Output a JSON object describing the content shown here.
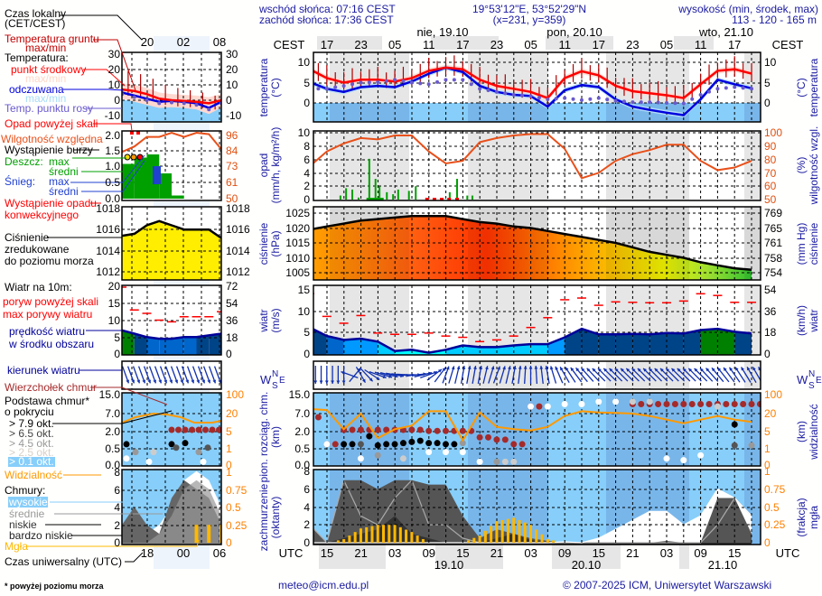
{
  "header": {
    "sunrise": "wschód słońca: 07:16 CEST",
    "sunset": "zachód słońca: 17:36 CEST",
    "coords": "19°53'12\"E, 53°52'29\"N",
    "grid": "(x=231,  y=359)",
    "elevation_label": "wysokość (min, środek, max)",
    "elevation_values": "113 - 120 - 165 m"
  },
  "time_axis": {
    "local_label": "CEST",
    "utc_label": "UTC",
    "local_hours": [
      "17",
      "23",
      "05",
      "11",
      "17",
      "23",
      "05",
      "11",
      "17",
      "23",
      "05",
      "11",
      "17"
    ],
    "utc_hours": [
      "15",
      "21",
      "03",
      "09",
      "15",
      "21",
      "03",
      "09",
      "15",
      "21",
      "03",
      "09",
      "15"
    ],
    "local_dates": [
      "nie, 19.10",
      "pon, 20.10",
      "wto, 21.10"
    ],
    "utc_dates": [
      "19.10",
      "20.10",
      "21.10"
    ]
  },
  "legend": {
    "local_time": "Czas lokalny",
    "local_time_zone": "(CET/CEST)",
    "ground_temp": "Temperatura gruntu",
    "ground_temp_mm": "max/min",
    "temperature": "Temperatura:",
    "mid_point": "punkt środkowy",
    "mid_mm": "max/min",
    "felt": "odczuwana",
    "felt_mm": "max/min",
    "dew_point": "Temp. punktu rosy",
    "precip_above": "Opad powyżej skali",
    "humidity": "Wilgotność względna",
    "storm": "Wystąpienie burzy",
    "rain": "Deszcz:",
    "rain_max": "max",
    "rain_avg": "średni",
    "snow": "Śnieg:",
    "snow_max": "max",
    "snow_avg": "średni",
    "convective_1": "Wystąpienie opadu",
    "convective_2": "konwekcyjnego",
    "pressure_1": "Ciśnienie",
    "pressure_2": "zredukowane",
    "pressure_3": "do poziomu morza",
    "wind_title": "Wiatr na 10m:",
    "gust_above": "poryw powyżej skali",
    "gust_max": "max porywy wiatru",
    "wind_speed_1": "prędkość wiatru",
    "wind_speed_2": "w środku obszaru",
    "wind_dir": "kierunek wiatru",
    "cloud_top": "Wierzchołek chmur",
    "cloud_base_1": "Podstawa chmur*",
    "cloud_base_2": "o pokryciu",
    "okt_79": "> 7.9 okt.",
    "okt_65": "> 6.5 okt.",
    "okt_45": "> 4.5 okt.",
    "okt_25": "> 2.5 okt.",
    "okt_01": "> 0.1 okt.",
    "visibility": "Widzialność",
    "clouds": "Chmury:",
    "high": "wysokie",
    "medium": "średnie",
    "low": "niskie",
    "very_low": "bardzo niskie",
    "fog": "Mgła",
    "utc_time": "Czas uniwersalny (UTC)"
  },
  "mini_axis": {
    "top_hours": [
      "20",
      "02",
      "08"
    ],
    "bottom_hours": [
      "18",
      "00",
      "06"
    ],
    "temp": [
      "30",
      "20",
      "10",
      "0",
      "-10"
    ],
    "precip": [
      "2.0",
      "1.5",
      "1.0",
      "0.5",
      "0.0"
    ],
    "humidity": [
      "96",
      "84",
      "73",
      "61",
      "50"
    ],
    "pressure": [
      "1018",
      "1016",
      "1014",
      "1012"
    ],
    "wind": [
      "20",
      "15",
      "10",
      "5",
      "0"
    ],
    "wind_kmh": [
      "72",
      "54",
      "36",
      "18",
      "0"
    ],
    "cloud": [
      "15.0",
      "7.0",
      "2.0",
      "0.5",
      "0.0"
    ],
    "visibility": [
      "100",
      "20",
      "5",
      "1",
      "0"
    ],
    "okt": [
      "8",
      "6",
      "4",
      "2",
      "0"
    ],
    "fog": [
      "1",
      "0.75",
      "0.5",
      "0.25",
      "0"
    ]
  },
  "axes": {
    "temp": {
      "title": "temperatura",
      "unit": "(°C)",
      "ticks": [
        "10",
        "5",
        "0"
      ],
      "right_title": "temperatura",
      "right_unit": "(°C)",
      "right_ticks": [
        "10",
        "5",
        "0"
      ]
    },
    "precip": {
      "title": "opad",
      "unit": "(mm/h, kg/m²/h)",
      "ticks": [
        "10",
        "8",
        "6",
        "4",
        "2",
        "0"
      ],
      "right_title": "wilgotność wzgl.",
      "right_unit": "(%)",
      "right_ticks": [
        "100",
        "90",
        "80",
        "70",
        "60",
        "50"
      ]
    },
    "pressure": {
      "title": "ciśnienie",
      "unit": "(hPa)",
      "ticks": [
        "1025",
        "1020",
        "1015",
        "1010",
        "1005"
      ],
      "right_title": "ciśnienie",
      "right_unit": "(mm Hg)",
      "right_ticks": [
        "769",
        "765",
        "761",
        "758",
        "754"
      ]
    },
    "wind": {
      "title": "wiatr",
      "unit": "(m/s)",
      "ticks": [
        "15",
        "10",
        "5",
        "0"
      ],
      "right_title": "wiatr",
      "right_unit": "(km/h)",
      "right_ticks": [
        "54",
        "36",
        "18",
        "0"
      ]
    },
    "compass": {
      "n": "N",
      "s": "S",
      "w": "W",
      "e": "E"
    },
    "cloud": {
      "title": "pion. rozciąg. chm.",
      "unit": "(km)",
      "ticks": [
        "15.0",
        "7.0",
        "2.0",
        "0.5",
        "0.0"
      ],
      "right_title": "widzialność",
      "right_unit": "(km)",
      "right_ticks": [
        "100",
        "20",
        "5",
        "1",
        "0"
      ]
    },
    "okt": {
      "title": "zachmurzenie",
      "unit": "(oktanty)",
      "ticks": [
        "8",
        "6",
        "4",
        "2",
        "0"
      ],
      "right_title": "mgła",
      "right_unit": "(frakcja)",
      "right_ticks": [
        "1",
        "0.75",
        "0.5",
        "0.25",
        "0"
      ]
    }
  },
  "footer": {
    "email": "meteo@icm.edu.pl",
    "copyright": "© 2007-2025 ICM, Uniwersytet Warszawski",
    "footnote": "* powyżej poziomu morza"
  },
  "colors": {
    "temperature": "#ff0000",
    "felt": "#0000dd",
    "dew": "#6a5acd",
    "humidity": "#e8501a",
    "rain": "#00a000",
    "pressure_line": "#000000",
    "wind_line": "#000099",
    "gust": "#ff0000",
    "visibility": "#ff9900",
    "cloud_top": "#a52a2a",
    "fog": "#ffb800",
    "sky": "#87cefa"
  },
  "chart_data": {
    "type": "line",
    "time_start": "18.10 12 UTC",
    "step_hours": 3,
    "temperature_c": [
      8.3,
      6.1,
      5.0,
      5.7,
      5.7,
      5.3,
      6.1,
      7.9,
      8.7,
      8.3,
      5.7,
      4.2,
      3.5,
      2.7,
      1.2,
      6.1,
      7.8,
      6.8,
      4.2,
      2.9,
      2.4,
      1.9,
      1.2,
      4.6,
      7.9,
      8.3,
      7.2
    ],
    "felt_temperature_c": [
      5.1,
      3.5,
      2.7,
      3.9,
      4.2,
      3.9,
      5.3,
      7.2,
      8.7,
      7.6,
      4.2,
      2.7,
      2.0,
      1.7,
      -0.9,
      3.1,
      4.4,
      3.9,
      0.9,
      -0.9,
      -1.7,
      -2.4,
      -3.0,
      0.9,
      5.7,
      4.6,
      3.6
    ],
    "dew_point_c": [
      3.5,
      3.5,
      4.2,
      5.0,
      5.1,
      5.7,
      5.0,
      4.6,
      5.7,
      5.7,
      3.5,
      2.7,
      2.0,
      1.7,
      0.9,
      1.2,
      0.7,
      1.2,
      0.5,
      0.2,
      0.2,
      0.0,
      -0.1,
      2.0,
      3.5,
      3.9,
      3.5
    ],
    "humidity_pct": [
      75,
      86,
      92,
      96,
      95,
      98,
      98,
      86,
      77,
      79,
      93,
      96,
      98,
      99,
      99,
      88,
      66,
      70,
      79,
      84,
      87,
      91,
      91,
      79,
      72,
      74,
      79
    ],
    "rain_mm_h": [
      {
        "h": 5.4,
        "v": 0.6
      },
      {
        "h": 6.4,
        "v": 1.7
      },
      {
        "h": 7.5,
        "v": 1.5
      },
      {
        "h": 8.6,
        "v": 0.3
      },
      {
        "h": 10.5,
        "v": 6.1
      },
      {
        "h": 11.6,
        "v": 3.1
      },
      {
        "h": 12.3,
        "v": 2.0
      },
      {
        "h": 13.6,
        "v": 1.1
      },
      {
        "h": 14.7,
        "v": 0.8
      },
      {
        "h": 15.6,
        "v": 1.5
      },
      {
        "h": 17.5,
        "v": 1.3
      },
      {
        "h": 18.7,
        "v": 2.0
      },
      {
        "h": 24.7,
        "v": 1.1
      },
      {
        "h": 26.0,
        "v": 3.1
      },
      {
        "h": 27.8,
        "v": 0.6
      },
      {
        "h": 28.7,
        "v": 0.6
      }
    ],
    "convective_hours": [
      20.7,
      22.0,
      23.3,
      24.6,
      26.0
    ],
    "pressure_hpa": [
      1019.5,
      1020.5,
      1021.5,
      1022.5,
      1023,
      1023.5,
      1024,
      1024,
      1024,
      1023,
      1022,
      1021.5,
      1020.5,
      1020,
      1019,
      1018,
      1017,
      1016,
      1015,
      1013.5,
      1012,
      1011,
      1010,
      1008.5,
      1007.5,
      1006.5,
      1006
    ],
    "wind_speed_ms": [
      6.2,
      4.2,
      3.3,
      3.6,
      2.9,
      0.7,
      1.0,
      0.3,
      1.0,
      2.0,
      1.6,
      1.6,
      2.0,
      2.3,
      2.3,
      3.9,
      5.9,
      4.6,
      4.6,
      4.7,
      4.6,
      4.9,
      4.8,
      5.6,
      5.9,
      5.2,
      4.8
    ],
    "wind_gust_ms": [
      14.1,
      8.8,
      7.2,
      9.0,
      4.9,
      4.6,
      4.6,
      4.9,
      4.2,
      3.9,
      2.9,
      3.3,
      4.2,
      6.2,
      8.5,
      12.7,
      13.1,
      11.4,
      12.2,
      12.1,
      12.0,
      12.0,
      12.4,
      14.1,
      13.7,
      12.1,
      12.1
    ],
    "wind_dir_deg": [
      0,
      0,
      0,
      330,
      290,
      280,
      270,
      250,
      200,
      190,
      190,
      200,
      190,
      180,
      170,
      150,
      140,
      135,
      135,
      135,
      135,
      135,
      135,
      135,
      140,
      145,
      150
    ],
    "cloud_top_km": [
      6,
      0.9,
      2.5,
      2.5,
      2.5,
      2.5,
      2.5,
      2.2,
      2.2,
      2.2,
      1.5,
      1.3,
      0.9,
      10,
      null,
      null,
      null,
      null,
      null,
      11,
      11,
      11,
      11,
      11,
      11,
      11,
      11
    ],
    "cloud_base": [
      {
        "i": 1,
        "km": 0.9,
        "c": 4
      },
      {
        "i": 2,
        "km": 0.9,
        "c": 0
      },
      {
        "i": 2.5,
        "km": 0.9,
        "c": 0
      },
      {
        "i": 3,
        "km": 0.9,
        "c": 1
      },
      {
        "i": 3,
        "km": 0.2,
        "c": 4
      },
      {
        "i": 3.5,
        "km": 1.6,
        "c": 0
      },
      {
        "i": 4,
        "km": 0.8,
        "c": 0
      },
      {
        "i": 4,
        "km": 0.3,
        "c": 2
      },
      {
        "i": 4.5,
        "km": 0.9,
        "c": 0
      },
      {
        "i": 5,
        "km": 0.9,
        "c": 0
      },
      {
        "i": 5.5,
        "km": 1.0,
        "c": 0
      },
      {
        "i": 5.5,
        "km": 0.2,
        "c": 3
      },
      {
        "i": 6,
        "km": 1.1,
        "c": 0
      },
      {
        "i": 6.5,
        "km": 1.2,
        "c": 0
      },
      {
        "i": 7,
        "km": 1.0,
        "c": 0
      },
      {
        "i": 7,
        "km": 0.4,
        "c": 4
      },
      {
        "i": 7.5,
        "km": 1.0,
        "c": 0
      },
      {
        "i": 8,
        "km": 0.9,
        "c": 0
      },
      {
        "i": 8,
        "km": 0.4,
        "c": 4
      },
      {
        "i": 8.5,
        "km": 0.9,
        "c": 0
      },
      {
        "i": 9,
        "km": 1.0,
        "c": 2
      },
      {
        "i": 9,
        "km": 0.4,
        "c": 4
      },
      {
        "i": 10,
        "km": 0.1,
        "c": 4
      },
      {
        "i": 11,
        "km": 0.1,
        "c": 2
      },
      {
        "i": 11.5,
        "km": 0.1,
        "c": 3
      },
      {
        "i": 12,
        "km": 0.1,
        "c": 3
      },
      {
        "i": 13,
        "km": 10,
        "c": 4
      },
      {
        "i": 14,
        "km": 10,
        "c": 4
      },
      {
        "i": 15,
        "km": 11,
        "c": 4
      },
      {
        "i": 16,
        "km": 11,
        "c": 4
      },
      {
        "i": 17,
        "km": 12,
        "c": 4
      },
      {
        "i": 18,
        "km": 12,
        "c": 4
      },
      {
        "i": 19,
        "km": 12,
        "c": 3
      },
      {
        "i": 20,
        "km": 12,
        "c": 3
      },
      {
        "i": 21,
        "km": 0.2,
        "c": 4
      },
      {
        "i": 22,
        "km": 0.15,
        "c": 4
      },
      {
        "i": 23,
        "km": 0.3,
        "c": 4
      },
      {
        "i": 24,
        "km": 10,
        "c": 3
      },
      {
        "i": 25,
        "km": 0.8,
        "c": 1
      },
      {
        "i": 25,
        "km": 4,
        "c": 0
      },
      {
        "i": 26,
        "km": 0.8,
        "c": 2
      }
    ],
    "visibility_km": [
      40,
      35,
      7,
      20,
      3.5,
      7,
      10,
      30,
      30,
      3,
      25,
      9,
      7,
      6,
      9,
      18,
      30,
      25,
      23,
      20,
      18,
      15,
      12,
      15,
      18,
      15,
      13
    ],
    "clouds_low_okt": [
      2,
      0,
      7,
      7,
      6,
      7,
      7,
      6.5,
      6.5,
      3,
      0.5,
      1.5,
      1,
      0.5,
      0.2,
      0,
      0,
      0,
      0,
      0,
      0,
      0.2,
      0,
      0,
      5,
      5,
      1
    ],
    "clouds_very_low_okt": [
      0,
      0,
      0.5,
      1,
      1.5,
      3,
      1,
      0.5,
      0,
      0,
      0,
      0.5,
      1,
      0.3,
      0,
      0,
      0,
      0,
      0,
      0,
      0,
      0,
      0,
      0,
      0,
      0,
      0
    ],
    "clouds_medium_okt": [
      2,
      0,
      7,
      3,
      2,
      5,
      7,
      2,
      2,
      0.5,
      0,
      0,
      0,
      0,
      0,
      0,
      0,
      0,
      0,
      0,
      0,
      0,
      0,
      0,
      2,
      5,
      3
    ],
    "clouds_high_okt": [
      0,
      0,
      0,
      0,
      0,
      0,
      0,
      0,
      0,
      0,
      0,
      0,
      0,
      0,
      0,
      0.1,
      0,
      0.5,
      1.5,
      2.5,
      3.5,
      3.5,
      2,
      3,
      6,
      5,
      3
    ],
    "fog_fraction": [
      0,
      0,
      0.05,
      0.2,
      0.25,
      0.25,
      0.15,
      0,
      0,
      0,
      0.1,
      0.3,
      0.35,
      0.25,
      0.05,
      0,
      0,
      0,
      0,
      0,
      0,
      0,
      0,
      0,
      0,
      0,
      0
    ],
    "legend_sample": {
      "temperature_c": [
        7,
        6,
        4,
        1,
        0,
        -0.5,
        -1,
        -2,
        0
      ],
      "felt_temperature_c": [
        5,
        3,
        1,
        -1,
        -0.5,
        -1,
        -2,
        -5,
        -1
      ],
      "humidity_pct": [
        84,
        88,
        95,
        95,
        98,
        95,
        98,
        97,
        86
      ],
      "rain_mm_h": [
        1.1,
        1.3,
        1.4,
        0.8,
        0.1,
        0,
        0,
        0,
        0
      ],
      "pressure_hpa": [
        1015.4,
        1015.6,
        1016.4,
        1016.8,
        1016.4,
        1016.0,
        1016.0,
        1016.0,
        1015.2
      ],
      "wind_speed_ms": [
        7,
        6,
        5,
        4.5,
        4.5,
        5,
        5,
        5.5,
        6
      ],
      "wind_gust_ms": [
        20,
        13,
        12,
        10,
        9.5,
        11,
        11,
        11,
        12.5
      ],
      "clouds_low_okt": [
        2,
        4,
        2,
        1,
        5,
        7,
        6,
        5,
        2
      ],
      "clouds_high_okt": [
        0,
        0,
        0,
        1,
        3,
        6,
        7,
        6,
        3
      ],
      "fog_fraction": [
        0,
        0,
        0,
        0,
        0,
        0,
        0.25,
        0.25,
        0.25
      ]
    }
  }
}
